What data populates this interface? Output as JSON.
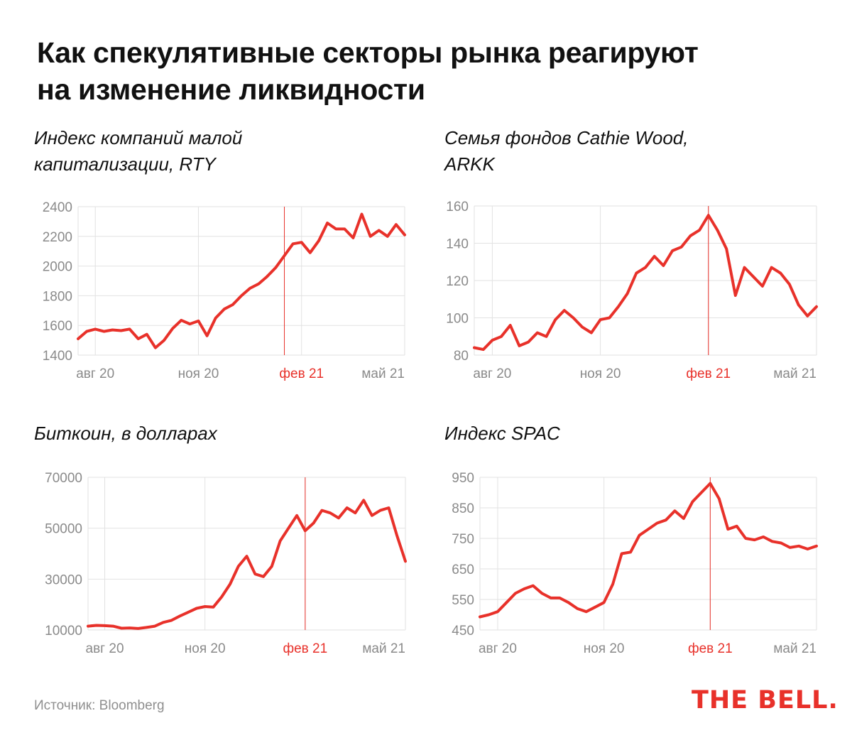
{
  "title": {
    "line1": "Как спекулятивные секторы рынка реагируют",
    "line2": "на изменение ликвидности"
  },
  "source": "Источник: Bloomberg",
  "logo": "THE BELL.",
  "colors": {
    "line": "#e8312a",
    "marker": "#e8312a",
    "grid": "#e2e2e2",
    "tick": "#8a8a8a"
  },
  "chart_data": [
    {
      "type": "line",
      "title": "Индекс компаний малой капитализации, RTY",
      "title_lines": [
        "Индекс компаний малой",
        "капитализации, RTY"
      ],
      "x_ticks": [
        {
          "label": "авг 20",
          "x": 0.5,
          "highlight": false
        },
        {
          "label": "ноя 20",
          "x": 3.5,
          "highlight": false
        },
        {
          "label": "фев 21",
          "x": 6.5,
          "highlight": true
        },
        {
          "label": "май 21",
          "x": 9.5,
          "highlight": false
        }
      ],
      "xlim": [
        0,
        9.5
      ],
      "ylim": [
        1400,
        2400
      ],
      "y_ticks": [
        1400,
        1600,
        1800,
        2000,
        2200,
        2400
      ],
      "marker_x": 6.0,
      "x": [
        0,
        0.25,
        0.5,
        0.75,
        1,
        1.25,
        1.5,
        1.75,
        2,
        2.25,
        2.5,
        2.75,
        3,
        3.25,
        3.5,
        3.75,
        4,
        4.25,
        4.5,
        4.75,
        5,
        5.25,
        5.5,
        5.75,
        6,
        6.25,
        6.5,
        6.75,
        7,
        7.25,
        7.5,
        7.75,
        8,
        8.25,
        8.5,
        8.75,
        9,
        9.25,
        9.5
      ],
      "values": [
        1510,
        1560,
        1575,
        1560,
        1570,
        1565,
        1575,
        1510,
        1540,
        1450,
        1500,
        1580,
        1635,
        1610,
        1630,
        1530,
        1650,
        1710,
        1740,
        1800,
        1850,
        1880,
        1930,
        1990,
        2070,
        2150,
        2160,
        2090,
        2170,
        2290,
        2250,
        2250,
        2190,
        2350,
        2200,
        2240,
        2200,
        2280,
        2210
      ]
    },
    {
      "type": "line",
      "title": "Семья фондов Cathie Wood, ARKK",
      "title_lines": [
        "Семья фондов Cathie Wood,",
        "ARKK"
      ],
      "x_ticks": [
        {
          "label": "авг 20",
          "x": 0.5,
          "highlight": false
        },
        {
          "label": "ноя 20",
          "x": 3.5,
          "highlight": false
        },
        {
          "label": "фев 21",
          "x": 6.5,
          "highlight": true
        },
        {
          "label": "май 21",
          "x": 9.5,
          "highlight": false
        }
      ],
      "xlim": [
        0,
        9.5
      ],
      "ylim": [
        80,
        160
      ],
      "y_ticks": [
        80,
        100,
        120,
        140,
        160
      ],
      "marker_x": 6.5,
      "x": [
        0,
        0.25,
        0.5,
        0.75,
        1,
        1.25,
        1.5,
        1.75,
        2,
        2.25,
        2.5,
        2.75,
        3,
        3.25,
        3.5,
        3.75,
        4,
        4.25,
        4.5,
        4.75,
        5,
        5.25,
        5.5,
        5.75,
        6,
        6.25,
        6.5,
        6.75,
        7,
        7.25,
        7.5,
        7.75,
        8,
        8.25,
        8.5,
        8.75,
        9,
        9.25,
        9.5
      ],
      "values": [
        84,
        83,
        88,
        90,
        96,
        85,
        87,
        92,
        90,
        99,
        104,
        100,
        95,
        92,
        99,
        100,
        106,
        113,
        124,
        127,
        133,
        128,
        136,
        138,
        144,
        147,
        155,
        147,
        137,
        112,
        127,
        122,
        117,
        127,
        124,
        118,
        107,
        101,
        106
      ]
    },
    {
      "type": "line",
      "title": "Биткоин, в долларах",
      "title_lines": [
        "Биткоин, в долларах"
      ],
      "x_ticks": [
        {
          "label": "авг 20",
          "x": 0.5,
          "highlight": false
        },
        {
          "label": "ноя 20",
          "x": 3.5,
          "highlight": false
        },
        {
          "label": "фев 21",
          "x": 6.5,
          "highlight": true
        },
        {
          "label": "май 21",
          "x": 9.5,
          "highlight": false
        }
      ],
      "xlim": [
        0,
        9.5
      ],
      "ylim": [
        10000,
        70000
      ],
      "y_ticks": [
        10000,
        30000,
        50000,
        70000
      ],
      "marker_x": 6.5,
      "x": [
        0,
        0.25,
        0.5,
        0.75,
        1,
        1.25,
        1.5,
        1.75,
        2,
        2.25,
        2.5,
        2.75,
        3,
        3.25,
        3.5,
        3.75,
        4,
        4.25,
        4.5,
        4.75,
        5,
        5.25,
        5.5,
        5.75,
        6,
        6.25,
        6.5,
        6.75,
        7,
        7.25,
        7.5,
        7.75,
        8,
        8.25,
        8.5,
        8.75,
        9,
        9.25,
        9.5
      ],
      "values": [
        11500,
        11800,
        11700,
        11500,
        10700,
        10800,
        10600,
        11000,
        11500,
        13000,
        13800,
        15500,
        17000,
        18500,
        19200,
        19000,
        23000,
        28000,
        35000,
        39000,
        32000,
        31000,
        35000,
        45000,
        50000,
        55000,
        49000,
        52000,
        57000,
        56000,
        54000,
        58000,
        56000,
        61000,
        55000,
        57000,
        58000,
        47000,
        37000
      ]
    },
    {
      "type": "line",
      "title": "Индекс SPAC",
      "title_lines": [
        "Индекс SPAC"
      ],
      "x_ticks": [
        {
          "label": "авг 20",
          "x": 0.5,
          "highlight": false
        },
        {
          "label": "ноя 20",
          "x": 3.5,
          "highlight": false
        },
        {
          "label": "фев 21",
          "x": 6.5,
          "highlight": true
        },
        {
          "label": "май 21",
          "x": 9.5,
          "highlight": false
        }
      ],
      "xlim": [
        0,
        9.5
      ],
      "ylim": [
        450,
        950
      ],
      "y_ticks": [
        450,
        550,
        650,
        750,
        850,
        950
      ],
      "marker_x": 6.5,
      "x": [
        0,
        0.25,
        0.5,
        0.75,
        1,
        1.25,
        1.5,
        1.75,
        2,
        2.25,
        2.5,
        2.75,
        3,
        3.25,
        3.5,
        3.75,
        4,
        4.25,
        4.5,
        4.75,
        5,
        5.25,
        5.5,
        5.75,
        6,
        6.25,
        6.5,
        6.75,
        7,
        7.25,
        7.5,
        7.75,
        8,
        8.25,
        8.5,
        8.75,
        9,
        9.25,
        9.5
      ],
      "values": [
        493,
        500,
        510,
        540,
        570,
        585,
        595,
        570,
        555,
        555,
        540,
        520,
        510,
        525,
        540,
        600,
        700,
        705,
        760,
        780,
        800,
        810,
        840,
        815,
        870,
        900,
        930,
        880,
        780,
        790,
        750,
        745,
        755,
        740,
        735,
        720,
        725,
        715,
        725
      ]
    }
  ]
}
